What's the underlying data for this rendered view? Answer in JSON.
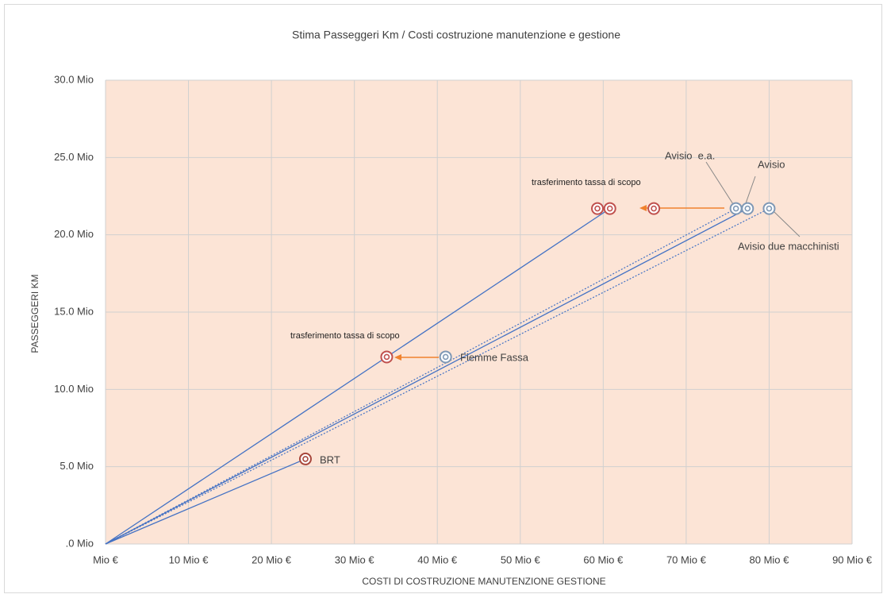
{
  "chart_data": {
    "type": "scatter",
    "title": "Stima Passeggeri Km / Costi costruzione manutenzione e gestione",
    "xlabel": "COSTI DI COSTRUZIONE MANUTENZIONE GESTIONE",
    "ylabel": "PASSEGGERI KM",
    "xlim": [
      0,
      90
    ],
    "ylim": [
      0,
      30
    ],
    "xticks": [
      {
        "value": 0,
        "label": "Mio €"
      },
      {
        "value": 10,
        "label": "10 Mio €"
      },
      {
        "value": 20,
        "label": "20 Mio €"
      },
      {
        "value": 30,
        "label": "30 Mio €"
      },
      {
        "value": 40,
        "label": "40 Mio €"
      },
      {
        "value": 50,
        "label": "50 Mio €"
      },
      {
        "value": 60,
        "label": "60 Mio €"
      },
      {
        "value": 70,
        "label": "70 Mio €"
      },
      {
        "value": 80,
        "label": "80 Mio €"
      },
      {
        "value": 90,
        "label": "90 Mio €"
      }
    ],
    "yticks": [
      {
        "value": 0,
        "label": ".0 Mio"
      },
      {
        "value": 5,
        "label": "5.0 Mio"
      },
      {
        "value": 10,
        "label": "10.0 Mio"
      },
      {
        "value": 15,
        "label": "15.0 Mio"
      },
      {
        "value": 20,
        "label": "20.0 Mio"
      },
      {
        "value": 25,
        "label": "25.0 Mio"
      },
      {
        "value": 30,
        "label": "30.0 Mio"
      }
    ],
    "grid": true,
    "points": [
      {
        "x": 24.1,
        "y": 5.5,
        "color": "#a8473c",
        "line": "solid"
      },
      {
        "x": 41.0,
        "y": 12.1,
        "color": "#7f98b5"
      },
      {
        "x": 33.9,
        "y": 12.1,
        "color": "#c0504d"
      },
      {
        "x": 59.3,
        "y": 21.7,
        "color": "#c0504d"
      },
      {
        "x": 60.8,
        "y": 21.7,
        "color": "#c0504d",
        "line": "solid"
      },
      {
        "x": 66.1,
        "y": 21.7,
        "color": "#c0504d"
      },
      {
        "x": 76.0,
        "y": 21.7,
        "color": "#7f98b5",
        "line": "dotted"
      },
      {
        "x": 77.4,
        "y": 21.7,
        "color": "#7f98b5",
        "line": "solid"
      },
      {
        "x": 80.0,
        "y": 21.7,
        "color": "#7f98b5",
        "line": "dotted"
      }
    ],
    "labels": [
      "BRT",
      "Fiemme Fassa",
      "Avisio  e.a.",
      "Avisio",
      "Avisio due macchinisti"
    ],
    "annotations": [
      "trasferimento tassa di scopo",
      "trasferimento tassa di scopo"
    ]
  }
}
